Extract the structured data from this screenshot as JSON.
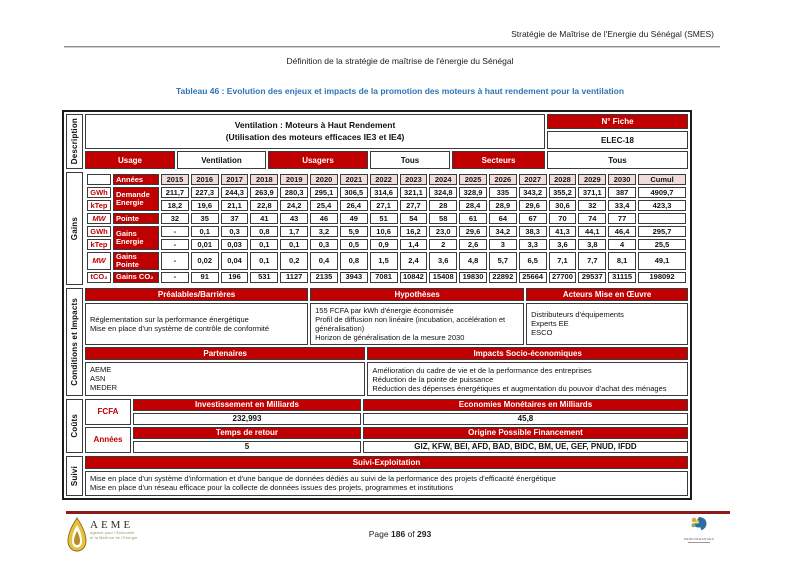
{
  "page": {
    "header_right": "Stratégie de Maîtrise de l'Energie du Sénégal (SMES)",
    "subtitle": "Définition de la stratégie de maîtrise de l'énergie du Sénégal",
    "caption": "Tableau 46 : Evolution des enjeux et impacts de la promotion des moteurs à haut rendement pour la ventilation"
  },
  "colors": {
    "dark_red": "#C00000",
    "peach": "#F2DCDB",
    "caption_blue": "#2E74B5",
    "footer_rule_red": "#8E1A1A"
  },
  "table": {
    "description": {
      "side_label": "Description",
      "title_line1": "Ventilation : Moteurs à Haut Rendement",
      "title_line2": "(Utilisation des moteurs efficaces IE3 et IE4)",
      "fiche_header": "N° Fiche",
      "fiche_value": "ELEC-18",
      "usage_label": "Usage",
      "usage_value": "Ventilation",
      "usagers_label": "Usagers",
      "usagers_value": "Tous",
      "secteurs_label": "Secteurs",
      "secteurs_value": "Tous"
    },
    "gains": {
      "side_label": "Gains",
      "years_label": "Années",
      "years": [
        "2015",
        "2016",
        "2017",
        "2018",
        "2019",
        "2020",
        "2021",
        "2022",
        "2023",
        "2024",
        "2025",
        "2026",
        "2027",
        "2028",
        "2029",
        "2030"
      ],
      "cumul_label": "Cumul",
      "groups": [
        {
          "label": "Demande Energie",
          "rows": [
            {
              "unit": "GWh",
              "values": [
                "211,7",
                "227,3",
                "244,3",
                "263,9",
                "280,3",
                "295,1",
                "306,5",
                "314,6",
                "321,1",
                "324,8",
                "328,9",
                "335",
                "343,2",
                "355,2",
                "371,1",
                "387"
              ],
              "cumul": "4909,7"
            },
            {
              "unit": "kTep",
              "values": [
                "18,2",
                "19,6",
                "21,1",
                "22,8",
                "24,2",
                "25,4",
                "26,4",
                "27,1",
                "27,7",
                "28",
                "28,4",
                "28,9",
                "29,6",
                "30,6",
                "32",
                "33,4"
              ],
              "cumul": "423,3"
            }
          ]
        },
        {
          "label": "Pointe",
          "rows": [
            {
              "unit": "MW",
              "values": [
                "32",
                "35",
                "37",
                "41",
                "43",
                "46",
                "49",
                "51",
                "54",
                "58",
                "61",
                "64",
                "67",
                "70",
                "74",
                "77"
              ],
              "cumul": ""
            }
          ]
        },
        {
          "label": "Gains Energie",
          "rows": [
            {
              "unit": "GWh",
              "values": [
                "-",
                "0,1",
                "0,3",
                "0,8",
                "1,7",
                "3,2",
                "5,9",
                "10,6",
                "16,2",
                "23,0",
                "29,6",
                "34,2",
                "38,3",
                "41,3",
                "44,1",
                "46,4"
              ],
              "cumul": "295,7"
            },
            {
              "unit": "kTep",
              "values": [
                "-",
                "0,01",
                "0,03",
                "0,1",
                "0,1",
                "0,3",
                "0,5",
                "0,9",
                "1,4",
                "2",
                "2,6",
                "3",
                "3,3",
                "3,6",
                "3,8",
                "4"
              ],
              "cumul": "25,5"
            }
          ]
        },
        {
          "label": "Gains Pointe",
          "rows": [
            {
              "unit": "MW",
              "values": [
                "-",
                "0,02",
                "0,04",
                "0,1",
                "0,2",
                "0,4",
                "0,8",
                "1,5",
                "2,4",
                "3,6",
                "4,8",
                "5,7",
                "6,5",
                "7,1",
                "7,7",
                "8,1"
              ],
              "cumul": "49,1"
            }
          ]
        },
        {
          "label": "Gains CO₂",
          "rows": [
            {
              "unit": "tCO₂",
              "values": [
                "-",
                "91",
                "196",
                "531",
                "1127",
                "2135",
                "3943",
                "7081",
                "10842",
                "15408",
                "19830",
                "22892",
                "25664",
                "27700",
                "29537",
                "31115"
              ],
              "cumul": "198092"
            }
          ]
        }
      ]
    },
    "conditions": {
      "side_label": "Conditions et Impacts",
      "prealables_header": "Préalables/Barrières",
      "prealables_lines": [
        "Réglementation sur la performance énergétique",
        "Mise en place d'un système de contrôle de conformité"
      ],
      "hypotheses_header": "Hypothèses",
      "hypotheses_lines": [
        "155 FCFA par kWh d'énergie économisée",
        "Profil de diffusion non linéaire (incubation, accélération et généralisation)",
        "Horizon de généralisation de la mesure 2030"
      ],
      "acteurs_header": "Acteurs Mise en Œuvre",
      "acteurs_lines": [
        "Distributeurs d'équipements",
        "Experts EE",
        "ESCO"
      ],
      "partenaires_header": "Partenaires",
      "partenaires_lines": [
        "AEME",
        "ASN",
        "MEDER"
      ],
      "impacts_header": "Impacts Socio-économiques",
      "impacts_lines": [
        "Amélioration du cadre de vie et de la performance des entreprises",
        "Réduction de la pointe de puissance",
        "Réduction des dépenses énergétiques et augmentation du pouvoir d'achat des ménages"
      ]
    },
    "couts": {
      "side_label": "Coûts",
      "fcfa_label": "FCFA",
      "investissement_header": "Investissement en Milliards",
      "investissement_value": "232,993",
      "economies_header": "Economies Monétaires en Milliards",
      "economies_value": "45,8",
      "annees_label": "Années",
      "temps_retour_header": "Temps de retour",
      "temps_retour_value": "5",
      "financement_header": "Origine Possible Financement",
      "financement_value": "GIZ, KFW, BEI, AFD, BAD, BIDC, BM, UE, GEF, PNUD, IFDD"
    },
    "suivi": {
      "side_label": "Suivi",
      "header": "Suivi-Exploitation",
      "lines": [
        "Mise en place d'un système d'information et d'une banque de données dédiés au suivi de la performance des projets d'efficacité énergétique",
        "Mise en place d'un réseau efficace pour la collecte de données issues des projets, programmes et institutions"
      ]
    }
  },
  "footer": {
    "page_word": "Page",
    "page_number": "186",
    "of_word": "of",
    "page_total": "293",
    "aeme_logo": {
      "name": "AEME",
      "subline1": "Agence pour l'Economie",
      "subline2": "et la Maîtrise de l'Energie"
    },
    "right_logo": {
      "name": "PERFORMANCES"
    }
  }
}
